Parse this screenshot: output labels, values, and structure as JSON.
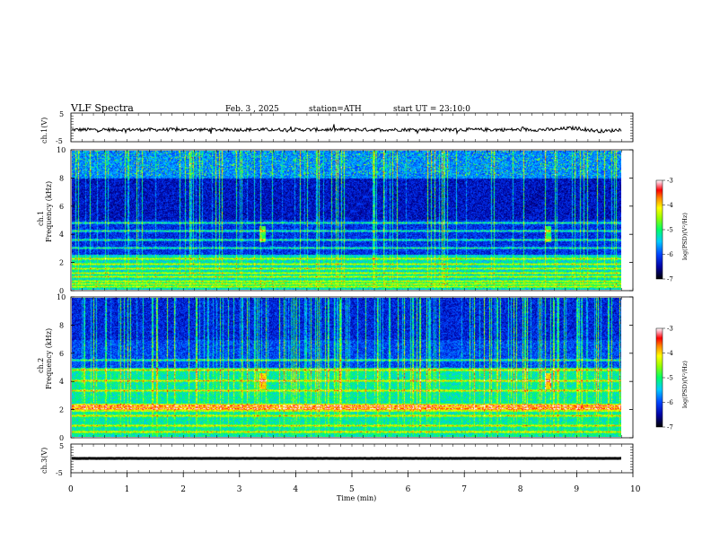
{
  "header": {
    "title": "VLF Spectra",
    "date": "Feb. 3 , 2025",
    "station": "station=ATH",
    "start": "start UT = 23:10:0"
  },
  "x_axis": {
    "label": "Time (min)",
    "ticks": [
      "0",
      "1",
      "2",
      "3",
      "4",
      "5",
      "6",
      "7",
      "8",
      "9",
      "10"
    ]
  },
  "colors": {
    "palette": [
      "#000000",
      "#000060",
      "#0000c0",
      "#0033ff",
      "#0099ff",
      "#00e5e5",
      "#00ff66",
      "#66ff00",
      "#ffff00",
      "#ff9900",
      "#ff0000",
      "#ff5577",
      "#ffffff"
    ]
  },
  "chart_data": [
    {
      "type": "line",
      "name": "ch1-waveform",
      "ylabel": "ch.1(V)",
      "yticks": [
        "5",
        "-5"
      ],
      "ylim": [
        -5,
        5
      ],
      "xlim": [
        0,
        10
      ],
      "baseline": -0.8,
      "color": "#000000"
    },
    {
      "type": "heatmap",
      "name": "ch1-spectrogram",
      "ylabel_top": "ch.1",
      "ylabel": "Frequency (kHz)",
      "yticks": [
        "0",
        "2",
        "4",
        "6",
        "8",
        "10"
      ],
      "ylim": [
        0,
        10
      ],
      "xlim": [
        0,
        10.0
      ],
      "colorbar": {
        "label": "log(PSD)(V²/Hz)",
        "ticks": [
          "-3",
          "-4",
          "-5",
          "-6",
          "-7"
        ],
        "range": [
          -7,
          -3
        ]
      },
      "features": {
        "bands_khz": [
          0.2,
          0.4,
          0.6,
          0.9,
          1.2,
          1.5,
          1.8,
          2.2,
          3.0,
          3.6,
          4.2,
          4.8
        ],
        "bursts_min": [
          3.4,
          8.5
        ]
      }
    },
    {
      "type": "heatmap",
      "name": "ch2-spectrogram",
      "ylabel_top": "ch.2",
      "ylabel": "Frequency (kHz)",
      "yticks": [
        "0",
        "2",
        "4",
        "6",
        "8",
        "10"
      ],
      "ylim": [
        0,
        10
      ],
      "xlim": [
        0,
        10.0
      ],
      "colorbar": {
        "label": "log(PSD)(V²/Hz)",
        "ticks": [
          "-3",
          "-4",
          "-5",
          "-6",
          "-7"
        ],
        "range": [
          -7,
          -3
        ]
      },
      "features": {
        "bands_khz": [
          0.3,
          0.8,
          1.5,
          2.0,
          2.2,
          3.3,
          4.0,
          4.8,
          5.5
        ],
        "bursts_min": [
          3.4,
          8.5
        ]
      }
    },
    {
      "type": "line",
      "name": "ch3-waveform",
      "ylabel": "ch.3(V)",
      "yticks": [
        "5",
        "-5"
      ],
      "ylim": [
        -5,
        5
      ],
      "xlim": [
        0,
        10
      ],
      "baseline": 0,
      "color": "#000000"
    }
  ]
}
